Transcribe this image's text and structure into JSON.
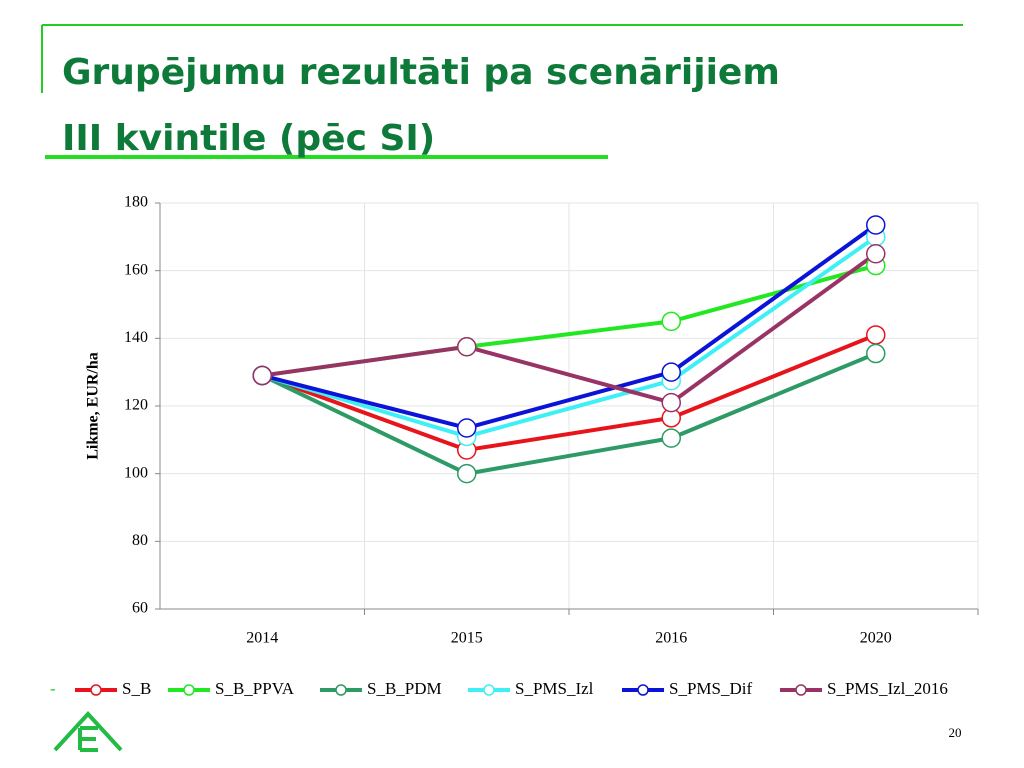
{
  "chart_data": {
    "type": "line",
    "title": "Grupējumu rezultāti pa scenārijiem",
    "subtitle": "III kvintile (pēc SI)",
    "y_label": "Likme, EUR/ha",
    "categories": [
      "2014",
      "2015",
      "2016",
      "2020"
    ],
    "series": [
      {
        "name": "S_B",
        "color": "#e8141b",
        "values": [
          129,
          107,
          116.5,
          141
        ]
      },
      {
        "name": "S_B_PPVA",
        "color": "#22e822",
        "values": [
          129,
          137.5,
          145,
          161.5
        ]
      },
      {
        "name": "S_B_PDM",
        "color": "#2e9a66",
        "values": [
          129,
          100,
          110.5,
          135.5
        ]
      },
      {
        "name": "S_PMS_Izl",
        "color": "#3ef0f5",
        "values": [
          129,
          111,
          127.5,
          170
        ]
      },
      {
        "name": "S_PMS_Dif",
        "color": "#0b13d6",
        "values": [
          129,
          113.5,
          130,
          173.5
        ]
      },
      {
        "name": "S_PMS_Izl_2016",
        "color": "#993366",
        "values": [
          129,
          137.5,
          121,
          165
        ]
      }
    ],
    "ylim": [
      60,
      180
    ],
    "yticks": [
      60,
      80,
      100,
      120,
      140,
      160,
      180
    ],
    "grid": true,
    "legend_prefix": "-",
    "page_number": "20"
  }
}
